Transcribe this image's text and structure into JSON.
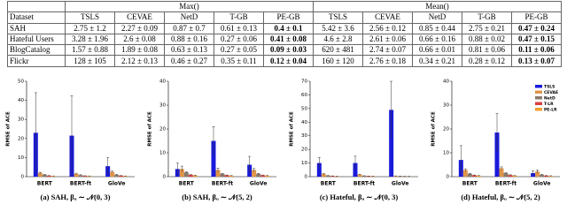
{
  "table": {
    "index_header": "Dataset",
    "groups": [
      {
        "name": "Max()",
        "columns": [
          "TSLS",
          "CEVAE",
          "NetD",
          "T-GB",
          "PE-GB"
        ]
      },
      {
        "name": "Mean()",
        "columns": [
          "TSLS",
          "CEVAE",
          "NetD",
          "T-GB",
          "PE-GB"
        ]
      }
    ],
    "rows": [
      [
        "SAH",
        "2.75 ± 1.2",
        "2.27 ± 0.09",
        "0.87 ± 0.7",
        "0.61 ± 0.13",
        "0.4 ± 0.1",
        "5.42 ± 3.6",
        "2.56 ± 0.12",
        "0.85 ± 0.44",
        "2.75 ± 0.21",
        "0.47 ± 0.24"
      ],
      [
        "Hateful Users",
        "3.28 ± 1.96",
        "2.6 ± 0.08",
        "0.88 ± 0.16",
        "0.27 ± 0.06",
        "0.41 ± 0.08",
        "4.6 ± 2.8",
        "2.61 ± 0.06",
        "0.66 ± 0.16",
        "0.88 ± 0.02",
        "0.47 ± 0.15"
      ],
      [
        "BlogCatalog",
        "1.57 ± 0.88",
        "1.89 ± 0.08",
        "0.63 ± 0.13",
        "0.27 ± 0.05",
        "0.09 ± 0.03",
        "620 ± 481",
        "2.74 ± 0.07",
        "0.66 ± 0.01",
        "0.81 ± 0.06",
        "0.11 ± 0.06"
      ],
      [
        "Flickr",
        "128 ± 105",
        "2.12 ± 0.13",
        "0.46 ± 0.27",
        "0.35 ± 0.11",
        "0.12 ± 0.04",
        "160 ± 120",
        "2.76 ± 0.18",
        "0.34 ± 0.21",
        "0.28 ± 0.12",
        "0.13 ± 0.07"
      ]
    ]
  },
  "chart_data": [
    {
      "type": "bar",
      "caption": "(a) SAH, βᵤ ∼ 𝒩(0, 3)",
      "y_label": "RMSE of ACE",
      "categories": [
        "BERT",
        "BERT-ft",
        "GloVe"
      ],
      "ylim": [
        0,
        50
      ],
      "yticks": [
        0,
        10,
        20,
        30,
        40,
        50
      ],
      "series": [
        {
          "color": "#1a1adb",
          "values": [
            23,
            21.5,
            5.5
          ],
          "errors": [
            21,
            21,
            4.5
          ]
        },
        {
          "color": "#e0954a",
          "values": [
            2,
            1.5,
            2.5
          ],
          "errors": [
            0.3,
            0.3,
            0.4
          ]
        },
        {
          "color": "#8a7a6a",
          "values": [
            1,
            0.8,
            1
          ],
          "errors": [
            0.2,
            0.2,
            0.2
          ]
        },
        {
          "color": "#d94040",
          "values": [
            0.5,
            0.4,
            0.5
          ],
          "errors": [
            0.1,
            0.1,
            0.1
          ]
        },
        {
          "color": "#f0a030",
          "values": [
            0.3,
            0.3,
            0.3
          ],
          "errors": [
            0.1,
            0.1,
            0.1
          ]
        }
      ]
    },
    {
      "type": "bar",
      "caption": "(b) SAH, βᵤ ∼ 𝒩(5, 2)",
      "y_label": "RMSE of ACE",
      "categories": [
        "BERT",
        "BERT-ft",
        "GloVe"
      ],
      "ylim": [
        0,
        40
      ],
      "yticks": [
        0,
        10,
        20,
        30,
        40
      ],
      "series": [
        {
          "color": "#1a1adb",
          "values": [
            3.2,
            15,
            5
          ],
          "errors": [
            2.5,
            6,
            3.5
          ]
        },
        {
          "color": "#e0954a",
          "values": [
            3.2,
            2.8,
            2.8
          ],
          "errors": [
            1.2,
            0.8,
            0.6
          ]
        },
        {
          "color": "#8a7a6a",
          "values": [
            1.8,
            1.2,
            1.2
          ],
          "errors": [
            0.3,
            0.2,
            0.2
          ]
        },
        {
          "color": "#d94040",
          "values": [
            0.8,
            0.6,
            0.6
          ],
          "errors": [
            0.1,
            0.1,
            0.1
          ]
        },
        {
          "color": "#f0a030",
          "values": [
            0.5,
            0.4,
            0.4
          ],
          "errors": [
            0.1,
            0.1,
            0.1
          ]
        }
      ]
    },
    {
      "type": "bar",
      "caption": "(c) Hateful, βᵤ ∼ 𝒩(0, 3)",
      "y_label": "RMSE of ACE",
      "categories": [
        "BERT",
        "BERT-ft",
        "GloVe"
      ],
      "ylim": [
        0,
        70
      ],
      "yticks": [
        0,
        10,
        20,
        30,
        40,
        50,
        60,
        70
      ],
      "series": [
        {
          "color": "#1a1adb",
          "values": [
            10,
            10,
            49
          ],
          "errors": [
            4,
            5,
            21
          ]
        },
        {
          "color": "#e0954a",
          "values": [
            2,
            1.5,
            0.5
          ],
          "errors": [
            0.3,
            0.3,
            0.1
          ]
        },
        {
          "color": "#8a7a6a",
          "values": [
            0.8,
            0.6,
            0.3
          ],
          "errors": [
            0.1,
            0.1,
            0.1
          ]
        },
        {
          "color": "#d94040",
          "values": [
            0.5,
            0.4,
            0.2
          ],
          "errors": [
            0.1,
            0.1,
            0.1
          ]
        },
        {
          "color": "#f0a030",
          "values": [
            0.3,
            0.3,
            0.2
          ],
          "errors": [
            0.1,
            0.1,
            0.1
          ]
        }
      ]
    },
    {
      "type": "bar",
      "caption": "(d) Hateful, βᵤ ∼ 𝒩(5, 2)",
      "y_label": "RMSE of ACE",
      "categories": [
        "BERT",
        "BERT-ft",
        "GloVe"
      ],
      "ylim": [
        0,
        40
      ],
      "yticks": [
        0,
        10,
        20,
        30,
        40
      ],
      "legend": "upper right",
      "series": [
        {
          "name": "TSLS",
          "color": "#1a1adb",
          "values": [
            7,
            18.5,
            1.5
          ],
          "errors": [
            6,
            8,
            1
          ]
        },
        {
          "name": "CEVAE",
          "color": "#e0954a",
          "values": [
            2.8,
            3.5,
            2.2
          ],
          "errors": [
            0.5,
            0.6,
            0.6
          ]
        },
        {
          "name": "NetD",
          "color": "#8a7a6a",
          "values": [
            1.2,
            1.5,
            0.8
          ],
          "errors": [
            0.2,
            0.2,
            0.2
          ]
        },
        {
          "name": "T-LR",
          "color": "#d94040",
          "values": [
            0.6,
            0.7,
            0.4
          ],
          "errors": [
            0.1,
            0.1,
            0.1
          ]
        },
        {
          "name": "PE-LR",
          "color": "#f0a030",
          "values": [
            0.4,
            0.4,
            0.3
          ],
          "errors": [
            0.1,
            0.1,
            0.1
          ]
        }
      ]
    }
  ]
}
